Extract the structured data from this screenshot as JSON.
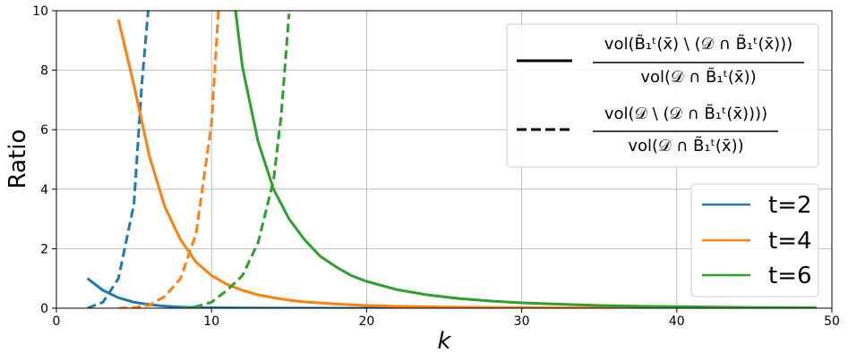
{
  "chart_data": {
    "type": "line",
    "xlabel": "k",
    "ylabel": "Ratio",
    "xlim": [
      0,
      50
    ],
    "ylim": [
      0,
      10
    ],
    "xticks": [
      0,
      10,
      20,
      30,
      40,
      50
    ],
    "yticks": [
      0,
      2,
      4,
      6,
      8,
      10
    ],
    "grid": true,
    "series": [
      {
        "name": "t=2",
        "color": "#1f77b4",
        "solid": {
          "x": [
            2,
            3,
            4,
            5,
            6,
            7,
            8,
            9,
            10,
            12,
            15,
            20,
            30,
            40,
            49
          ],
          "y": [
            1.0,
            0.6,
            0.35,
            0.2,
            0.12,
            0.07,
            0.04,
            0.025,
            0.015,
            0.006,
            0.002,
            0.0005,
            0.0,
            0.0,
            0.0
          ]
        },
        "dashed": {
          "x": [
            2,
            3,
            4,
            5,
            5.5,
            6
          ],
          "y": [
            0.0,
            0.2,
            1.0,
            3.5,
            7.5,
            10.5
          ]
        }
      },
      {
        "name": "t=4",
        "color": "#ff7f0e",
        "solid": {
          "x": [
            4,
            5,
            6,
            7,
            8,
            9,
            10,
            11,
            12,
            13,
            14,
            15,
            16,
            18,
            20,
            22,
            25,
            30,
            35,
            40,
            45,
            49
          ],
          "y": [
            9.7,
            7.5,
            5.1,
            3.4,
            2.3,
            1.55,
            1.1,
            0.8,
            0.6,
            0.45,
            0.35,
            0.27,
            0.21,
            0.14,
            0.09,
            0.06,
            0.035,
            0.015,
            0.007,
            0.004,
            0.002,
            0.001
          ]
        },
        "dashed": {
          "x": [
            4,
            5,
            6,
            7,
            8,
            9,
            10,
            10.5
          ],
          "y": [
            0.0,
            0.02,
            0.1,
            0.4,
            1.0,
            2.5,
            6.2,
            10.5
          ]
        }
      },
      {
        "name": "t=6",
        "color": "#2ca02c",
        "solid": {
          "x": [
            11.5,
            12,
            13,
            14,
            15,
            16,
            17,
            18,
            19,
            20,
            22,
            24,
            26,
            28,
            30,
            32,
            35,
            38,
            40,
            45,
            49
          ],
          "y": [
            10.2,
            8.1,
            5.6,
            4.0,
            3.0,
            2.3,
            1.75,
            1.4,
            1.1,
            0.9,
            0.62,
            0.44,
            0.32,
            0.24,
            0.18,
            0.14,
            0.09,
            0.06,
            0.05,
            0.025,
            0.015
          ]
        },
        "dashed": {
          "x": [
            8,
            9,
            10,
            11,
            12,
            13,
            14,
            14.5,
            15
          ],
          "y": [
            0.0,
            0.05,
            0.2,
            0.6,
            1.1,
            2.2,
            4.3,
            6.5,
            9.9
          ]
        }
      }
    ],
    "style_legend": {
      "placement": "upper-right",
      "entries": [
        {
          "style": "solid",
          "numerator": "vol(B̃₁ᵗ(x̄) \\ (𝒟 ∩ B̃₁ᵗ(x̄)))",
          "denominator": "vol(𝒟 ∩ B̃₁ᵗ(x̄))"
        },
        {
          "style": "dashed",
          "numerator": "vol(𝒟 \\ (𝒟 ∩ B̃₁ᵗ(x̄))))",
          "denominator": "vol(𝒟 ∩ B̃₁ᵗ(x̄))"
        }
      ]
    },
    "color_legend": {
      "placement": "right"
    }
  }
}
